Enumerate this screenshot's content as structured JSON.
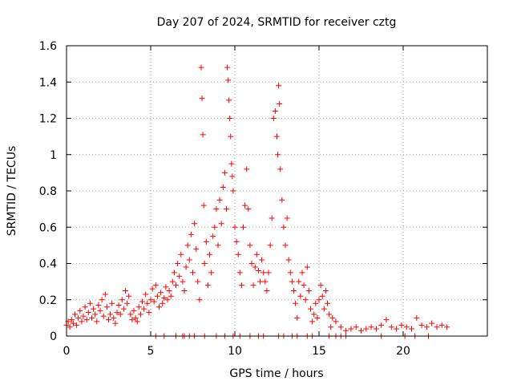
{
  "chart_data": {
    "type": "scatter",
    "title": "Day 207 of 2024, SRMTID for receiver cztg",
    "xlabel": "GPS time / hours",
    "ylabel": "SRMTID / TECUs",
    "xlim": [
      0,
      25
    ],
    "ylim": [
      0,
      1.6
    ],
    "xticks": [
      0,
      5,
      10,
      15,
      20
    ],
    "xtick_labels": [
      "0",
      "5",
      "10",
      "15",
      "20"
    ],
    "yticks": [
      0,
      0.2,
      0.4,
      0.6,
      0.8,
      1.0,
      1.2,
      1.4,
      1.6
    ],
    "ytick_labels": [
      "0",
      "0.2",
      "0.4",
      "0.6",
      "0.8",
      "1",
      "1.2",
      "1.4",
      "1.6"
    ],
    "grid": "dotted",
    "marker": "+",
    "color": "#ff0000",
    "series": [
      {
        "name": "SRMTID",
        "points": [
          [
            0.0,
            0.06
          ],
          [
            0.1,
            0.08
          ],
          [
            0.2,
            0.05
          ],
          [
            0.3,
            0.09
          ],
          [
            0.4,
            0.07
          ],
          [
            0.5,
            0.12
          ],
          [
            0.6,
            0.06
          ],
          [
            0.7,
            0.1
          ],
          [
            0.8,
            0.14
          ],
          [
            0.9,
            0.08
          ],
          [
            1.0,
            0.11
          ],
          [
            1.1,
            0.16
          ],
          [
            1.2,
            0.09
          ],
          [
            1.3,
            0.13
          ],
          [
            1.4,
            0.18
          ],
          [
            1.5,
            0.1
          ],
          [
            1.6,
            0.15
          ],
          [
            1.7,
            0.12
          ],
          [
            1.8,
            0.08
          ],
          [
            1.9,
            0.17
          ],
          [
            2.0,
            0.14
          ],
          [
            2.1,
            0.2
          ],
          [
            2.2,
            0.11
          ],
          [
            2.3,
            0.23
          ],
          [
            2.4,
            0.16
          ],
          [
            2.5,
            0.09
          ],
          [
            2.6,
            0.12
          ],
          [
            2.7,
            0.18
          ],
          [
            2.8,
            0.1
          ],
          [
            2.9,
            0.07
          ],
          [
            3.0,
            0.13
          ],
          [
            3.1,
            0.17
          ],
          [
            3.2,
            0.12
          ],
          [
            3.3,
            0.2
          ],
          [
            3.4,
            0.15
          ],
          [
            3.5,
            0.25
          ],
          [
            3.6,
            0.18
          ],
          [
            3.7,
            0.22
          ],
          [
            3.8,
            0.12
          ],
          [
            3.9,
            0.09
          ],
          [
            4.0,
            0.14
          ],
          [
            4.1,
            0.1
          ],
          [
            4.2,
            0.08
          ],
          [
            4.3,
            0.16
          ],
          [
            4.4,
            0.12
          ],
          [
            4.5,
            0.19
          ],
          [
            4.6,
            0.15
          ],
          [
            4.7,
            0.23
          ],
          [
            4.8,
            0.18
          ],
          [
            4.9,
            0.13
          ],
          [
            5.0,
            0.2
          ],
          [
            5.1,
            0.26
          ],
          [
            5.2,
            0.19
          ],
          [
            5.3,
            0.28
          ],
          [
            5.4,
            0.22
          ],
          [
            5.5,
            0.16
          ],
          [
            5.6,
            0.24
          ],
          [
            5.7,
            0.18
          ],
          [
            5.8,
            0.21
          ],
          [
            5.9,
            0.27
          ],
          [
            6.0,
            0.2
          ],
          [
            6.1,
            0.25
          ],
          [
            6.2,
            0.22
          ],
          [
            6.3,
            0.3
          ],
          [
            6.4,
            0.35
          ],
          [
            6.5,
            0.28
          ],
          [
            6.6,
            0.4
          ],
          [
            6.7,
            0.33
          ],
          [
            6.8,
            0.45
          ],
          [
            6.9,
            0.3
          ],
          [
            7.0,
            0.25
          ],
          [
            7.1,
            0.38
          ],
          [
            7.2,
            0.5
          ],
          [
            7.3,
            0.42
          ],
          [
            7.4,
            0.56
          ],
          [
            7.5,
            0.35
          ],
          [
            7.6,
            0.62
          ],
          [
            7.7,
            0.48
          ],
          [
            7.8,
            0.3
          ],
          [
            7.9,
            0.2
          ],
          [
            8.0,
            1.48
          ],
          [
            8.05,
            1.31
          ],
          [
            8.1,
            1.11
          ],
          [
            8.15,
            0.72
          ],
          [
            8.2,
            0.4
          ],
          [
            8.3,
            0.52
          ],
          [
            8.4,
            0.28
          ],
          [
            8.5,
            0.45
          ],
          [
            8.6,
            0.35
          ],
          [
            8.7,
            0.55
          ],
          [
            8.8,
            0.6
          ],
          [
            8.9,
            0.7
          ],
          [
            9.0,
            0.5
          ],
          [
            9.1,
            0.75
          ],
          [
            9.2,
            0.62
          ],
          [
            9.3,
            0.82
          ],
          [
            9.4,
            0.9
          ],
          [
            9.5,
            0.7
          ],
          [
            9.55,
            1.48
          ],
          [
            9.6,
            1.41
          ],
          [
            9.65,
            1.3
          ],
          [
            9.7,
            1.2
          ],
          [
            9.75,
            1.1
          ],
          [
            9.8,
            0.95
          ],
          [
            9.85,
            0.88
          ],
          [
            9.9,
            0.8
          ],
          [
            10.0,
            0.6
          ],
          [
            10.1,
            0.52
          ],
          [
            10.2,
            0.45
          ],
          [
            10.3,
            0.35
          ],
          [
            10.4,
            0.28
          ],
          [
            10.5,
            0.6
          ],
          [
            10.6,
            0.72
          ],
          [
            10.7,
            0.92
          ],
          [
            10.8,
            0.7
          ],
          [
            10.9,
            0.5
          ],
          [
            11.0,
            0.4
          ],
          [
            11.1,
            0.28
          ],
          [
            11.2,
            0.38
          ],
          [
            11.3,
            0.45
          ],
          [
            11.4,
            0.36
          ],
          [
            11.5,
            0.3
          ],
          [
            11.6,
            0.42
          ],
          [
            11.7,
            0.35
          ],
          [
            11.8,
            0.3
          ],
          [
            11.9,
            0.25
          ],
          [
            12.0,
            0.35
          ],
          [
            12.1,
            0.5
          ],
          [
            12.2,
            0.65
          ],
          [
            12.3,
            1.2
          ],
          [
            12.4,
            1.24
          ],
          [
            12.5,
            1.1
          ],
          [
            12.55,
            1.0
          ],
          [
            12.6,
            1.38
          ],
          [
            12.65,
            1.28
          ],
          [
            12.7,
            0.92
          ],
          [
            12.8,
            0.75
          ],
          [
            12.9,
            0.6
          ],
          [
            13.0,
            0.5
          ],
          [
            13.1,
            0.65
          ],
          [
            13.2,
            0.42
          ],
          [
            13.3,
            0.35
          ],
          [
            13.4,
            0.3
          ],
          [
            13.5,
            0.25
          ],
          [
            13.6,
            0.18
          ],
          [
            13.7,
            0.1
          ],
          [
            13.8,
            0.3
          ],
          [
            13.9,
            0.22
          ],
          [
            14.0,
            0.35
          ],
          [
            14.1,
            0.28
          ],
          [
            14.2,
            0.2
          ],
          [
            14.3,
            0.38
          ],
          [
            14.4,
            0.25
          ],
          [
            14.5,
            0.15
          ],
          [
            14.6,
            0.08
          ],
          [
            14.7,
            0.12
          ],
          [
            14.8,
            0.18
          ],
          [
            14.9,
            0.1
          ],
          [
            15.0,
            0.2
          ],
          [
            15.1,
            0.28
          ],
          [
            15.2,
            0.22
          ],
          [
            15.3,
            0.15
          ],
          [
            15.4,
            0.25
          ],
          [
            15.5,
            0.18
          ],
          [
            15.6,
            0.12
          ],
          [
            15.7,
            0.05
          ],
          [
            15.8,
            0.1
          ],
          [
            16.0,
            0.08
          ],
          [
            16.3,
            0.05
          ],
          [
            16.6,
            0.03
          ],
          [
            16.9,
            0.04
          ],
          [
            17.2,
            0.05
          ],
          [
            17.5,
            0.03
          ],
          [
            17.8,
            0.04
          ],
          [
            18.1,
            0.05
          ],
          [
            18.4,
            0.04
          ],
          [
            18.7,
            0.06
          ],
          [
            19.0,
            0.09
          ],
          [
            19.3,
            0.05
          ],
          [
            19.6,
            0.04
          ],
          [
            19.9,
            0.06
          ],
          [
            20.2,
            0.05
          ],
          [
            20.5,
            0.04
          ],
          [
            20.8,
            0.1
          ],
          [
            21.1,
            0.06
          ],
          [
            21.4,
            0.05
          ],
          [
            21.7,
            0.07
          ],
          [
            22.0,
            0.05
          ],
          [
            22.3,
            0.06
          ],
          [
            22.6,
            0.05
          ],
          [
            5.3,
            0.0
          ],
          [
            5.8,
            0.0
          ],
          [
            6.5,
            0.0
          ],
          [
            6.9,
            0.0
          ],
          [
            7.0,
            0.0
          ],
          [
            7.3,
            0.0
          ],
          [
            7.6,
            0.0
          ],
          [
            8.2,
            0.0
          ],
          [
            8.9,
            0.0
          ],
          [
            9.4,
            0.0
          ],
          [
            9.9,
            0.0
          ],
          [
            10.3,
            0.0
          ],
          [
            10.9,
            0.0
          ],
          [
            11.4,
            0.0
          ],
          [
            11.7,
            0.0
          ],
          [
            12.6,
            0.0
          ],
          [
            12.9,
            0.0
          ],
          [
            13.4,
            0.0
          ],
          [
            13.7,
            0.0
          ],
          [
            14.3,
            0.0
          ],
          [
            14.6,
            0.0
          ],
          [
            15.6,
            0.0
          ],
          [
            16.0,
            0.0
          ],
          [
            16.3,
            0.0
          ],
          [
            16.6,
            0.0
          ],
          [
            18.7,
            0.0
          ],
          [
            20.1,
            0.0
          ],
          [
            20.7,
            0.0
          ],
          [
            21.5,
            0.0
          ]
        ]
      }
    ]
  }
}
